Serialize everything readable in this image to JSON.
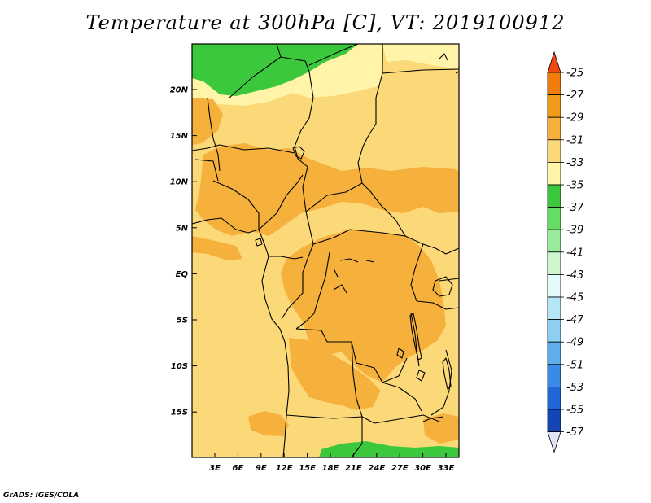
{
  "title": "Temperature at 300hPa [C], VT: 2019100912",
  "credit": "GrADS: IGES/COLA",
  "map": {
    "lat_ticks": [
      "20N",
      "15N",
      "10N",
      "5N",
      "EQ",
      "5S",
      "10S",
      "15S"
    ],
    "lon_ticks": [
      "3E",
      "6E",
      "9E",
      "12E",
      "15E",
      "18E",
      "21E",
      "24E",
      "27E",
      "30E",
      "33E"
    ]
  },
  "colorbar": {
    "labels": [
      "-25",
      "-27",
      "-29",
      "-31",
      "-33",
      "-35",
      "-37",
      "-39",
      "-41",
      "-43",
      "-45",
      "-47",
      "-49",
      "-51",
      "-53",
      "-55",
      "-57"
    ],
    "colors": [
      "#f04a12",
      "#f07c0a",
      "#f29a1a",
      "#f5b13c",
      "#fbd878",
      "#fff4a8",
      "#3cc83c",
      "#66dd66",
      "#9be99b",
      "#cff5cf",
      "#e6f9fb",
      "#b5e6f5",
      "#8dcef2",
      "#5fadec",
      "#3b8ae6",
      "#2066d6",
      "#1444b5",
      "#0e2190",
      "#000070"
    ],
    "top_color": "#f04a12",
    "bottom_color": "#e1e1f7"
  }
}
